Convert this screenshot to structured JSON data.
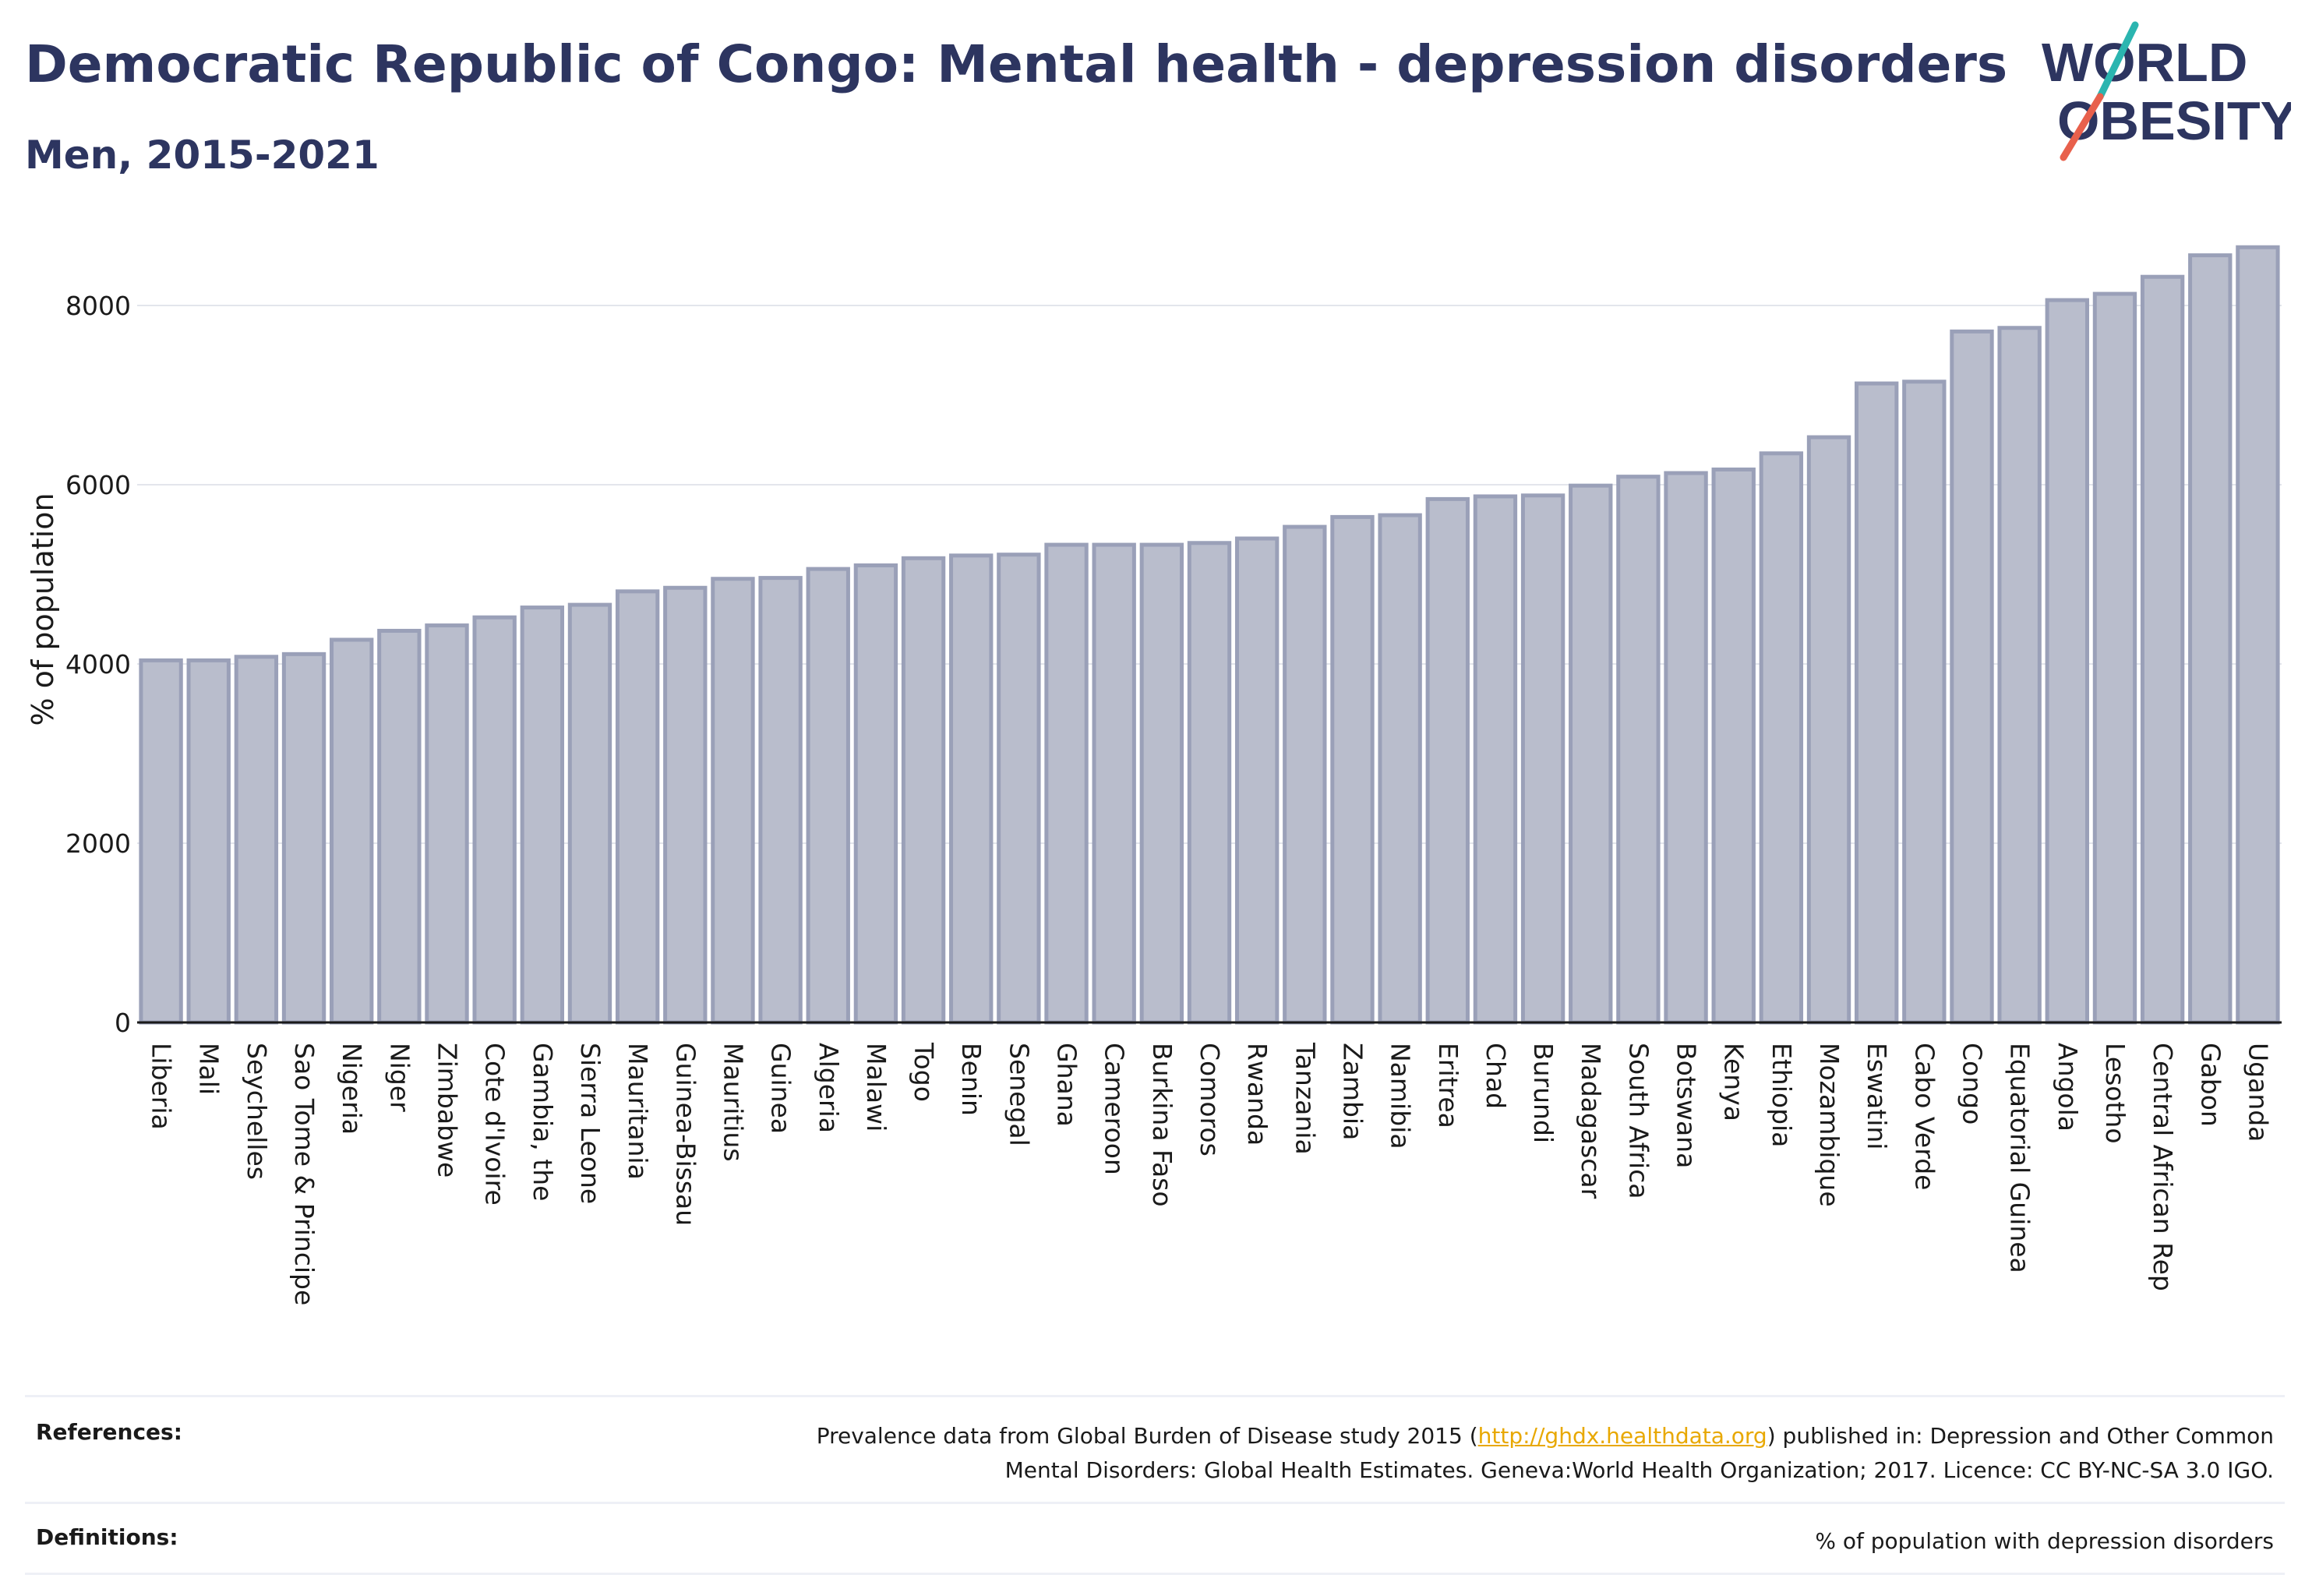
{
  "header": {
    "title": "Democratic Republic of Congo: Mental health - depression disorders",
    "subtitle": "Men, 2015-2021"
  },
  "logo": {
    "line1": "WORLD",
    "line2": "OBESITY",
    "colors": {
      "text": "#2d3560",
      "slash_teal": "#2bb5b0",
      "slash_red": "#e8604c"
    }
  },
  "chart_data": {
    "type": "bar",
    "ylabel": "% of population",
    "ylim": [
      0,
      8800
    ],
    "yticks": [
      0,
      2000,
      4000,
      6000,
      8000
    ],
    "grid": true,
    "bar_color": "#b9bdcc",
    "bar_edge_color": "#9aa0b8",
    "categories": [
      "Liberia",
      "Mali",
      "Seychelles",
      "Sao Tome & Principe",
      "Nigeria",
      "Niger",
      "Zimbabwe",
      "Cote d'Ivoire",
      "Gambia, the",
      "Sierra Leone",
      "Mauritania",
      "Guinea-Bissau",
      "Mauritius",
      "Guinea",
      "Algeria",
      "Malawi",
      "Togo",
      "Benin",
      "Senegal",
      "Ghana",
      "Cameroon",
      "Burkina Faso",
      "Comoros",
      "Rwanda",
      "Tanzania",
      "Zambia",
      "Namibia",
      "Eritrea",
      "Chad",
      "Burundi",
      "Madagascar",
      "South Africa",
      "Botswana",
      "Kenya",
      "Ethiopia",
      "Mozambique",
      "Eswatini",
      "Cabo Verde",
      "Congo",
      "Equatorial Guinea",
      "Angola",
      "Lesotho",
      "Central African Rep",
      "Gabon",
      "Uganda"
    ],
    "values": [
      4040,
      4040,
      4080,
      4110,
      4270,
      4370,
      4430,
      4520,
      4630,
      4660,
      4810,
      4850,
      4950,
      4960,
      5060,
      5100,
      5180,
      5210,
      5220,
      5330,
      5330,
      5330,
      5350,
      5400,
      5530,
      5640,
      5660,
      5840,
      5870,
      5880,
      5990,
      6090,
      6130,
      6170,
      6350,
      6530,
      7130,
      7150,
      7710,
      7750,
      8060,
      8130,
      8320,
      8560,
      8650
    ]
  },
  "footer": {
    "references_label": "References:",
    "references_text_before": "Prevalence data from Global Burden of Disease study 2015 (",
    "references_link": "http://ghdx.healthdata.org",
    "references_text_after": ") published in: Depression and Other Common",
    "references_text_line2": "Mental Disorders: Global Health Estimates. Geneva:World Health Organization; 2017. Licence: CC BY-NC-SA 3.0 IGO.",
    "definitions_label": "Definitions:",
    "definitions_text": "% of population with depression disorders"
  }
}
